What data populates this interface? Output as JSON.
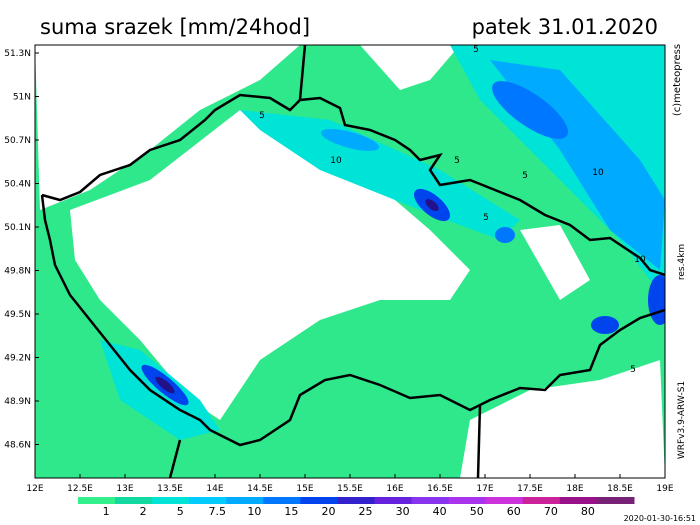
{
  "header": {
    "title": "suma srazek [mm/24hod]",
    "date": "patek 31.01.2020"
  },
  "axes": {
    "lat": [
      "51.3N",
      "51N",
      "50.7N",
      "50.4N",
      "50.1N",
      "49.8N",
      "49.5N",
      "49.2N",
      "48.9N",
      "48.6N"
    ],
    "lon": [
      "12E",
      "12.5E",
      "13E",
      "13.5E",
      "14E",
      "14.5E",
      "15E",
      "15.5E",
      "16E",
      "16.5E",
      "17E",
      "17.5E",
      "18E",
      "18.5E",
      "19E"
    ]
  },
  "contour_labels": [
    "5",
    "10",
    "5",
    "5",
    "5",
    "10",
    "10",
    "5",
    "5"
  ],
  "legend": {
    "labels": [
      "1",
      "2",
      "5",
      "7.5",
      "10",
      "15",
      "20",
      "25",
      "30",
      "40",
      "50",
      "60",
      "70",
      "80"
    ],
    "colors": [
      "#33f08c",
      "#11d9a0",
      "#00e4d8",
      "#00ccff",
      "#00aaff",
      "#0077ff",
      "#0044ee",
      "#3322cc",
      "#6622dd",
      "#8833ee",
      "#aa33ee",
      "#cc33dd",
      "#cc2299",
      "#991188",
      "#772277"
    ]
  },
  "side": {
    "copyright": "(c)meteopress",
    "resolution": "res.4km",
    "model": "WRFv3.9-ARW-S1",
    "timestamp": "2020-01-30-16:51"
  }
}
